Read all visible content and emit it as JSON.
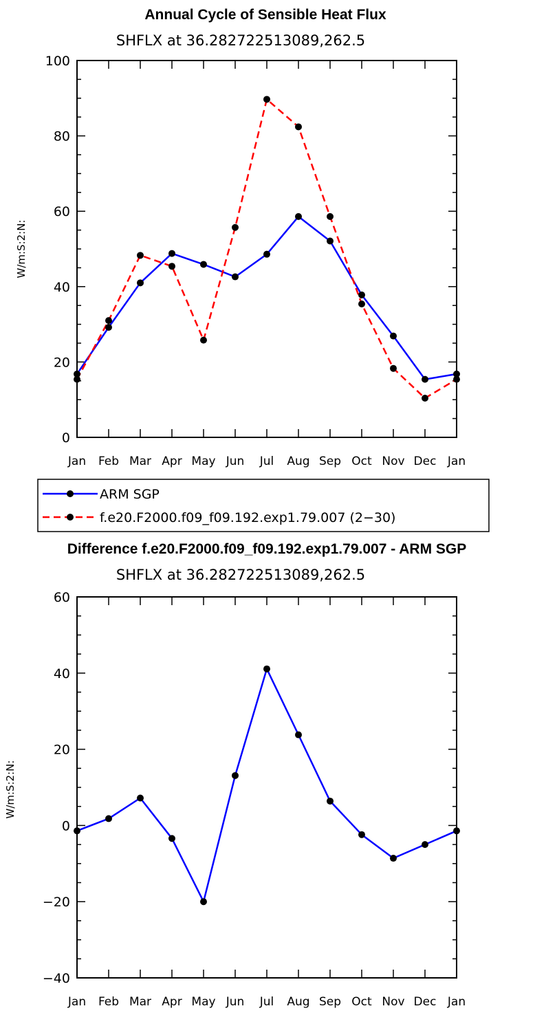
{
  "colors": {
    "obs": "#0000ff",
    "model": "#ff0000",
    "marker": "#000000",
    "axis": "#000000"
  },
  "chart_data": [
    {
      "type": "line",
      "title": "Annual Cycle of Sensible Heat Flux",
      "subtitle": "SHFLX at 36.282722513089,262.5",
      "xlabel": "",
      "ylabel": "W/m:S:2:N:",
      "categories": [
        "Jan",
        "Feb",
        "Mar",
        "Apr",
        "May",
        "Jun",
        "Jul",
        "Aug",
        "Sep",
        "Oct",
        "Nov",
        "Dec",
        "Jan"
      ],
      "ylim": [
        0,
        100
      ],
      "yticks": [
        0,
        20,
        40,
        60,
        80,
        100
      ],
      "series": [
        {
          "name": "ARM SGP",
          "style": "solid",
          "values": [
            16.8,
            29.2,
            41.0,
            48.8,
            45.9,
            42.6,
            48.6,
            58.6,
            52.1,
            37.8,
            26.9,
            15.4,
            16.8
          ]
        },
        {
          "name": "f.e20.F2000.f09_f09.192.exp1.79.007 (2−30)",
          "style": "dashed",
          "values": [
            15.4,
            31.0,
            48.3,
            45.4,
            25.8,
            55.7,
            89.7,
            82.4,
            58.6,
            35.4,
            18.3,
            10.4,
            15.4
          ]
        }
      ],
      "legend": "bottom-left"
    },
    {
      "type": "line",
      "title": "Difference f.e20.F2000.f09_f09.192.exp1.79.007 - ARM SGP",
      "subtitle": "SHFLX at 36.282722513089,262.5",
      "xlabel": "",
      "ylabel": "W/m:S:2:N:",
      "categories": [
        "Jan",
        "Feb",
        "Mar",
        "Apr",
        "May",
        "Jun",
        "Jul",
        "Aug",
        "Sep",
        "Oct",
        "Nov",
        "Dec",
        "Jan"
      ],
      "ylim": [
        -40,
        60
      ],
      "yticks": [
        -40,
        -20,
        0,
        20,
        40,
        60
      ],
      "series": [
        {
          "name": "Difference",
          "style": "solid",
          "values": [
            -1.4,
            1.8,
            7.2,
            -3.4,
            -20.0,
            13.1,
            41.1,
            23.8,
            6.4,
            -2.4,
            -8.6,
            -5.0,
            -1.4
          ]
        }
      ]
    }
  ]
}
